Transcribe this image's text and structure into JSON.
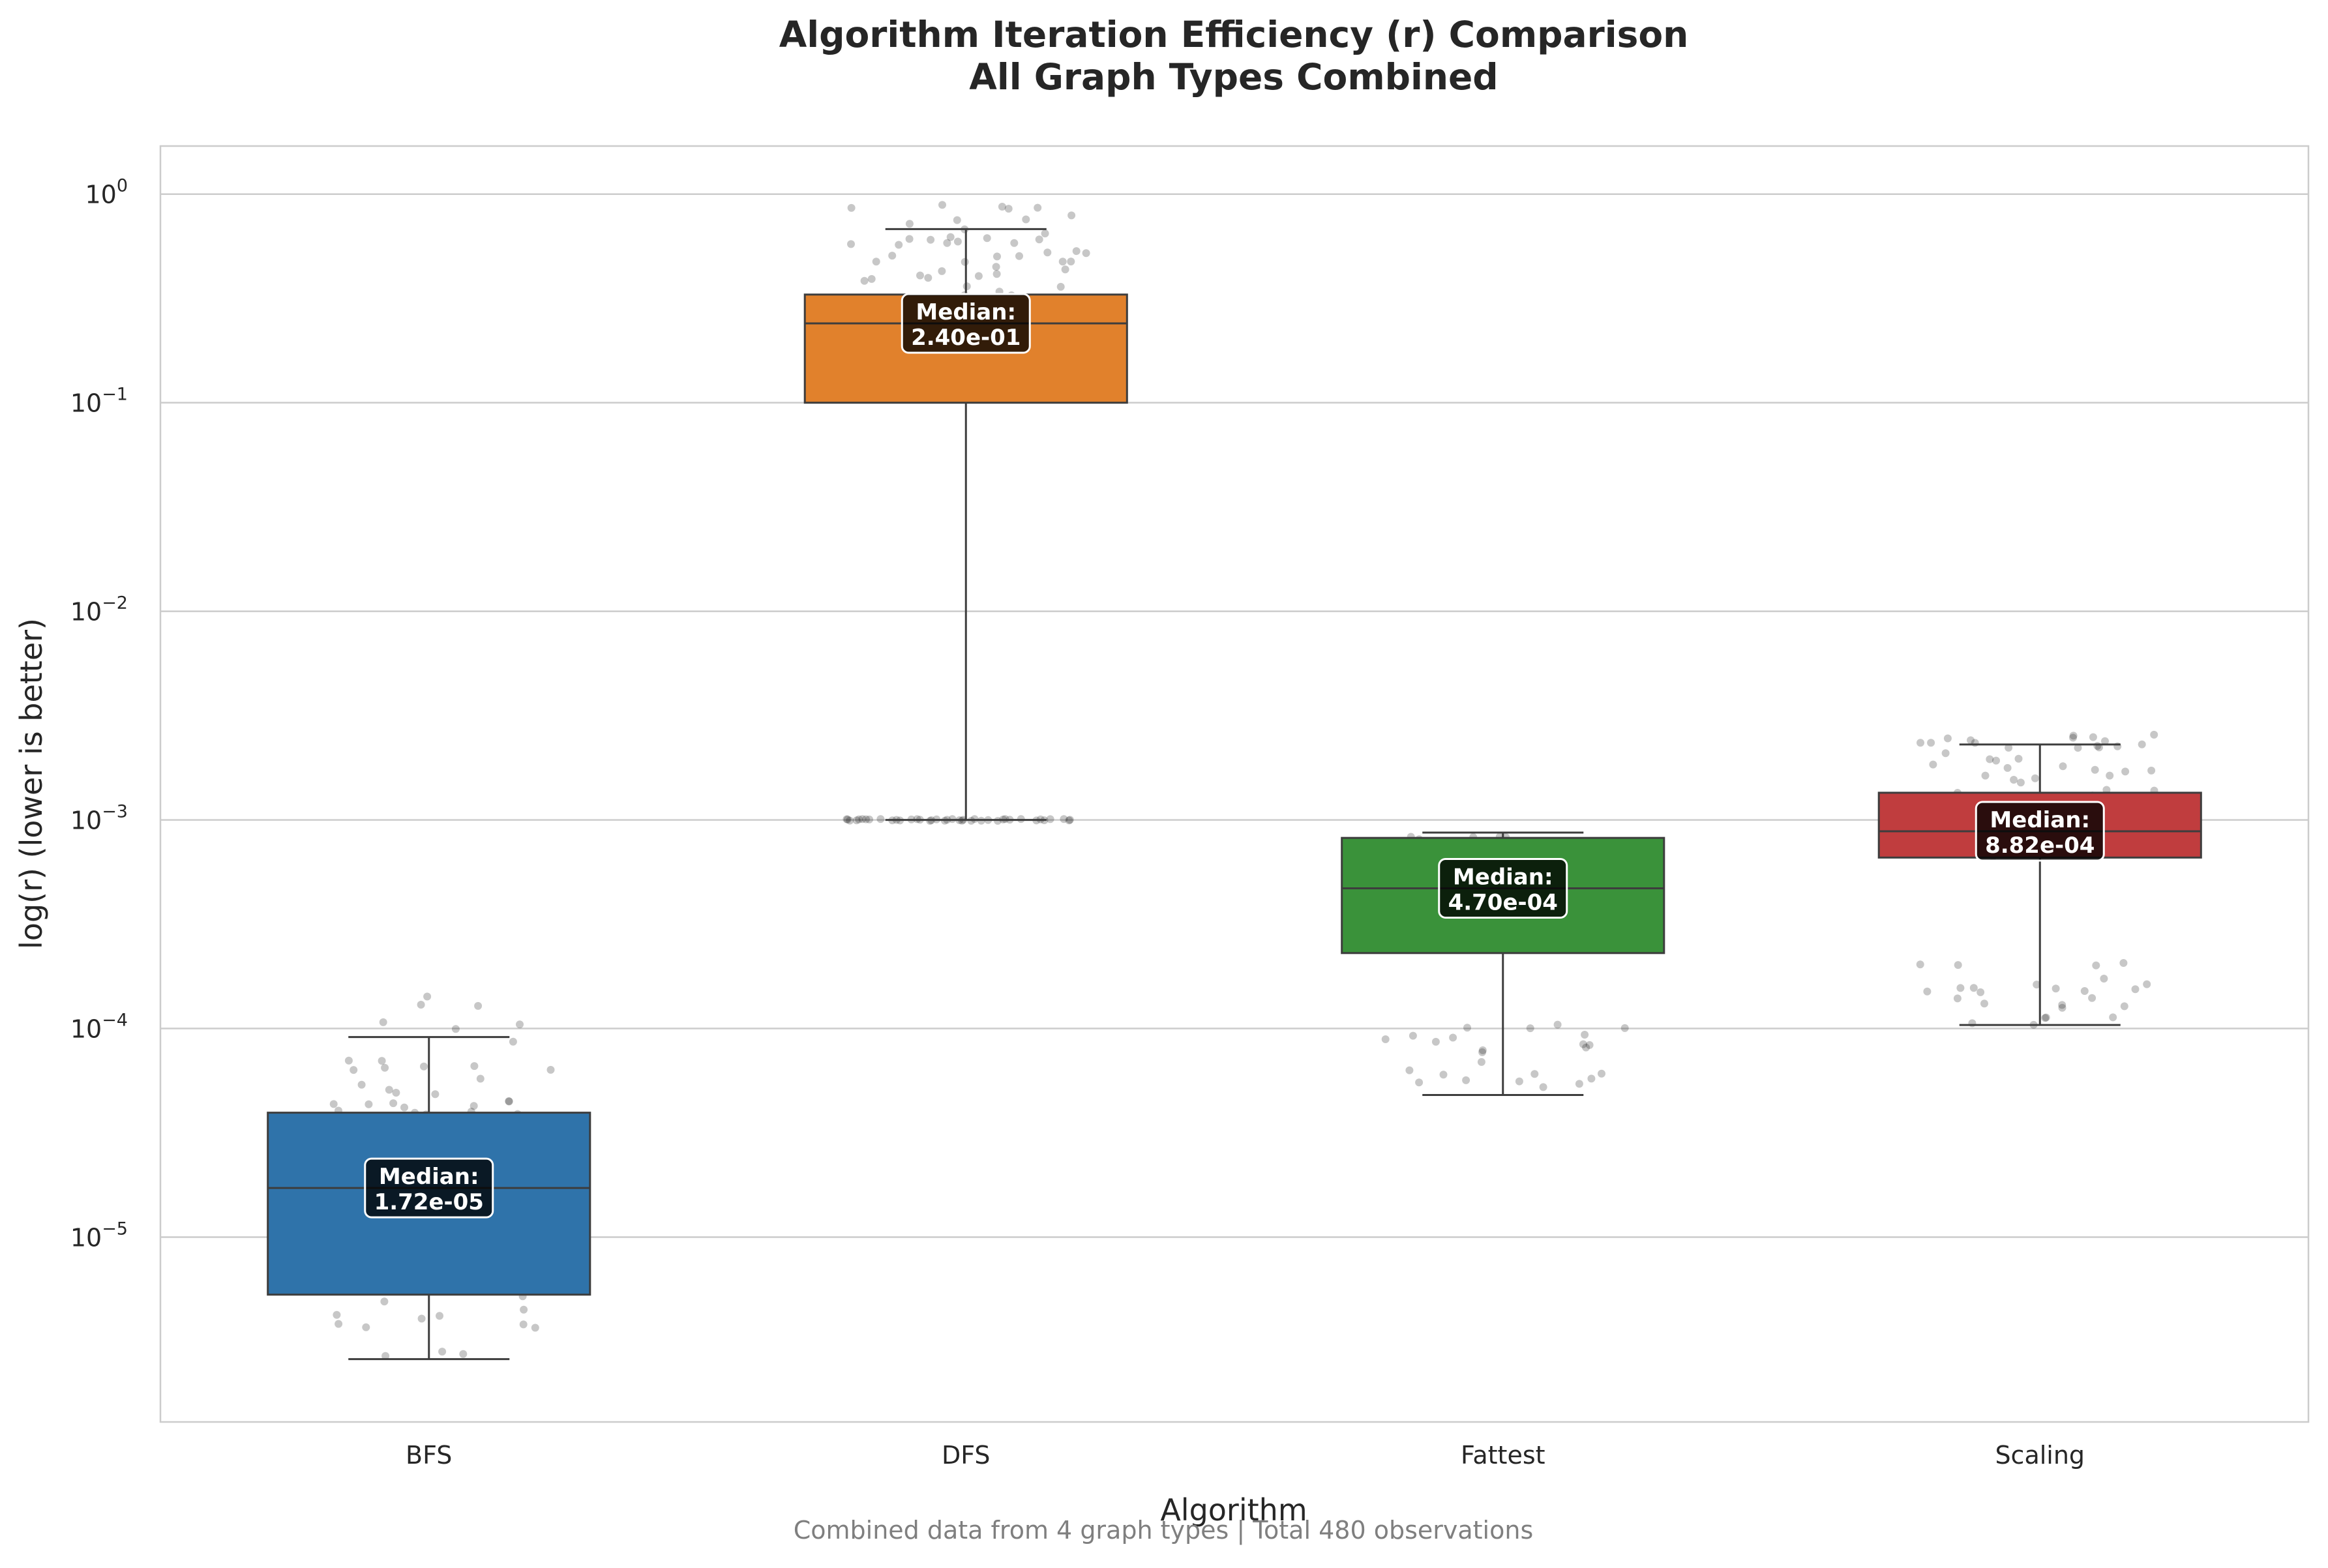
{
  "chart_data": {
    "type": "box",
    "title_line1": "Algorithm Iteration Efficiency (r) Comparison",
    "title_line2": "All Graph Types Combined",
    "xlabel": "Algorithm",
    "ylabel": "log(r) (lower is better)",
    "yscale": "log",
    "ylim": [
      1.3e-06,
      1.7
    ],
    "yticks": [
      {
        "value": 1.0,
        "base": "10",
        "exp": "0"
      },
      {
        "value": 0.1,
        "base": "10",
        "exp": "−1"
      },
      {
        "value": 0.01,
        "base": "10",
        "exp": "−2"
      },
      {
        "value": 0.001,
        "base": "10",
        "exp": "−3"
      },
      {
        "value": 0.0001,
        "base": "10",
        "exp": "−4"
      },
      {
        "value": 1e-05,
        "base": "10",
        "exp": "−5"
      }
    ],
    "grid": "horizontal",
    "median_label_prefix": "Median:",
    "footnote": "Combined data from 4 graph types | Total 480 observations",
    "boxes": [
      {
        "name": "BFS",
        "color": "#2f73aa",
        "whisker_low": 2.6e-06,
        "q1": 5.3e-06,
        "median": 1.72e-05,
        "q3": 3.95e-05,
        "whisker_high": 9.1e-05,
        "median_text": "1.72e-05",
        "spread_low": 2.6e-06,
        "spread_high": 0.000145,
        "points": 95
      },
      {
        "name": "DFS",
        "color": "#e1812c",
        "whisker_low": 0.001,
        "q1": 0.1,
        "median": 0.24,
        "q3": 0.33,
        "whisker_high": 0.68,
        "median_text": "2.40e-01",
        "spread_low": 0.13,
        "spread_high": 0.9,
        "points": 75,
        "floor_cluster": {
          "value": 0.001,
          "points": 40
        }
      },
      {
        "name": "Fattest",
        "color": "#3a923a",
        "whisker_low": 4.8e-05,
        "q1": 0.00023,
        "median": 0.00047,
        "q3": 0.00082,
        "whisker_high": 0.00087,
        "median_text": "4.70e-04",
        "spread_low": 0.00025,
        "spread_high": 0.00087,
        "points": 55,
        "low_cluster": {
          "low": 4.8e-05,
          "high": 0.00011,
          "points": 25
        }
      },
      {
        "name": "Scaling",
        "color": "#c03d3e",
        "whisker_low": 0.000104,
        "q1": 0.00066,
        "median": 0.000882,
        "q3": 0.00135,
        "whisker_high": 0.0023,
        "median_text": "8.82e-04",
        "spread_low": 0.00066,
        "spread_high": 0.0026,
        "points": 55,
        "low_cluster": {
          "low": 0.000104,
          "high": 0.00022,
          "points": 25
        }
      }
    ]
  }
}
